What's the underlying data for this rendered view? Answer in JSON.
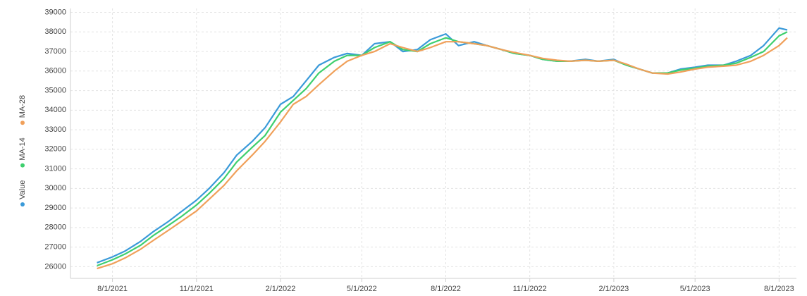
{
  "chart_data": {
    "type": "line",
    "x": [
      "2021-07-15",
      "2021-08-01",
      "2021-08-15",
      "2021-09-01",
      "2021-09-15",
      "2021-10-01",
      "2021-10-15",
      "2021-11-01",
      "2021-11-15",
      "2021-12-01",
      "2021-12-15",
      "2022-01-01",
      "2022-01-15",
      "2022-02-01",
      "2022-02-15",
      "2022-03-01",
      "2022-03-15",
      "2022-04-01",
      "2022-04-15",
      "2022-05-01",
      "2022-05-15",
      "2022-06-01",
      "2022-06-15",
      "2022-07-01",
      "2022-07-15",
      "2022-08-01",
      "2022-08-15",
      "2022-09-01",
      "2022-09-15",
      "2022-10-01",
      "2022-10-15",
      "2022-11-01",
      "2022-11-15",
      "2022-12-01",
      "2022-12-15",
      "2023-01-01",
      "2023-01-15",
      "2023-02-01",
      "2023-02-15",
      "2023-03-01",
      "2023-03-15",
      "2023-04-01",
      "2023-04-15",
      "2023-05-01",
      "2023-05-15",
      "2023-06-01",
      "2023-06-15",
      "2023-07-01",
      "2023-07-15",
      "2023-08-01",
      "2023-08-10"
    ],
    "series": [
      {
        "name": "Value",
        "color": "#3a9ad9",
        "values": [
          26200,
          26500,
          26800,
          27300,
          27800,
          28300,
          28800,
          29400,
          30000,
          30800,
          31700,
          32400,
          33100,
          34300,
          34700,
          35500,
          36300,
          36700,
          36900,
          36800,
          37400,
          37500,
          37000,
          37100,
          37600,
          37900,
          37300,
          37500,
          37300,
          37100,
          36900,
          36800,
          36600,
          36500,
          36500,
          36600,
          36500,
          36600,
          36300,
          36100,
          35900,
          35900,
          36100,
          36200,
          36300,
          36300,
          36500,
          36800,
          37300,
          38200,
          38100
        ]
      },
      {
        "name": "MA-14",
        "color": "#3ecf6e",
        "values": [
          26050,
          26350,
          26650,
          27100,
          27600,
          28100,
          28550,
          29150,
          29750,
          30500,
          31350,
          32100,
          32700,
          33900,
          34500,
          35100,
          35900,
          36500,
          36800,
          36800,
          37200,
          37500,
          37100,
          37000,
          37400,
          37700,
          37500,
          37400,
          37300,
          37100,
          36900,
          36800,
          36600,
          36500,
          36500,
          36550,
          36500,
          36550,
          36300,
          36100,
          35900,
          35900,
          36050,
          36150,
          36250,
          36300,
          36400,
          36700,
          37000,
          37800,
          38000
        ]
      },
      {
        "name": "MA-28",
        "color": "#f0a05a",
        "values": [
          25900,
          26150,
          26450,
          26900,
          27350,
          27850,
          28300,
          28850,
          29450,
          30150,
          30900,
          31700,
          32400,
          33400,
          34300,
          34700,
          35300,
          36000,
          36500,
          36800,
          37000,
          37400,
          37200,
          37000,
          37200,
          37500,
          37500,
          37400,
          37300,
          37100,
          36950,
          36800,
          36650,
          36550,
          36500,
          36550,
          36500,
          36550,
          36350,
          36100,
          35900,
          35850,
          35950,
          36100,
          36200,
          36250,
          36300,
          36500,
          36800,
          37300,
          37700
        ]
      }
    ],
    "xlim": [
      "2021-06-16",
      "2023-08-20"
    ],
    "xticks": [
      {
        "value": "2021-08-01",
        "label": "8/1/2021"
      },
      {
        "value": "2021-11-01",
        "label": "11/1/2021"
      },
      {
        "value": "2022-02-01",
        "label": "2/1/2022"
      },
      {
        "value": "2022-05-01",
        "label": "5/1/2022"
      },
      {
        "value": "2022-08-01",
        "label": "8/1/2022"
      },
      {
        "value": "2022-11-01",
        "label": "11/1/2022"
      },
      {
        "value": "2023-02-01",
        "label": "2/1/2023"
      },
      {
        "value": "2023-05-01",
        "label": "5/1/2023"
      },
      {
        "value": "2023-08-01",
        "label": "8/1/2023"
      }
    ],
    "ylim": [
      25400,
      39200
    ],
    "yticks": [
      26000,
      27000,
      28000,
      29000,
      30000,
      31000,
      32000,
      33000,
      34000,
      35000,
      36000,
      37000,
      38000,
      39000
    ],
    "grid": true,
    "legend": "left"
  }
}
